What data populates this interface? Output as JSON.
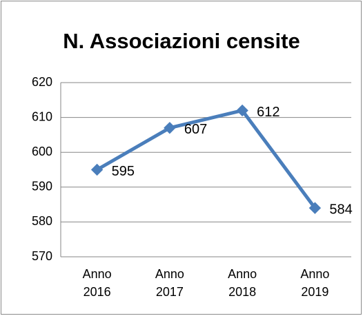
{
  "chart_data": {
    "type": "line",
    "title": "N. Associazioni censite",
    "categories": [
      "Anno 2016",
      "Anno 2017",
      "Anno 2018",
      "Anno 2019"
    ],
    "series": [
      {
        "name": "N. Associazioni censite",
        "color": "#4a7ebb",
        "values": [
          595,
          607,
          612,
          584
        ]
      }
    ],
    "ylim": [
      570,
      620
    ],
    "yticks": [
      570,
      580,
      590,
      600,
      610,
      620
    ],
    "grid": true
  }
}
